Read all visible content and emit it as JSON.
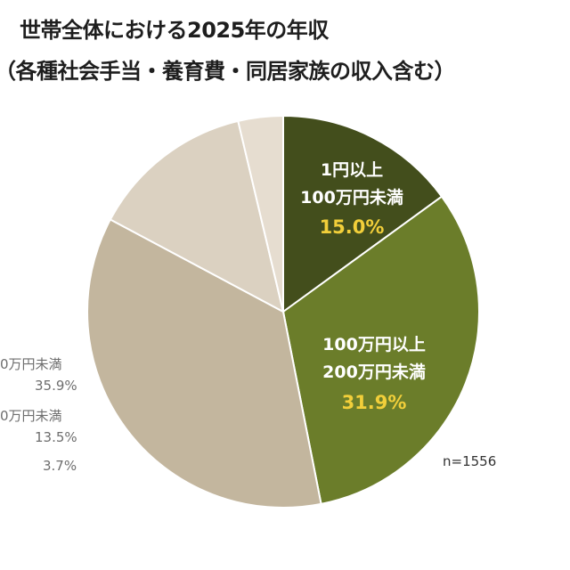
{
  "title": {
    "line1": "世帯全体における2025年の年収",
    "line2": "（各種社会手当・養育費・同居家族の収入含む）"
  },
  "sample_size": "n=1556",
  "chart_data": {
    "type": "pie",
    "title": "世帯全体における2025年の年収（各種社会手当・養育費・同居家族の収入含む）",
    "slices": [
      {
        "label_line1": "1円以上",
        "label_line2": "100万円未満",
        "value": 15.0,
        "value_text": "15.0%",
        "color": "#434e1c"
      },
      {
        "label_line1": "100万円以上",
        "label_line2": "200万円未満",
        "value": 31.9,
        "value_text": "31.9%",
        "color": "#6b7d2a"
      },
      {
        "label_line1": "0万円未満",
        "label_line2": "",
        "value": 35.9,
        "value_text": "35.9%",
        "color": "#c3b69e"
      },
      {
        "label_line1": "0万円未満",
        "label_line2": "",
        "value": 13.5,
        "value_text": "13.5%",
        "color": "#dbd1c1"
      },
      {
        "label_line1": "",
        "label_line2": "",
        "value": 3.7,
        "value_text": "3.7%",
        "color": "#e6ddd0"
      }
    ],
    "label_color_inside": "#ffffff",
    "value_color_inside": "#f2cf3a"
  }
}
